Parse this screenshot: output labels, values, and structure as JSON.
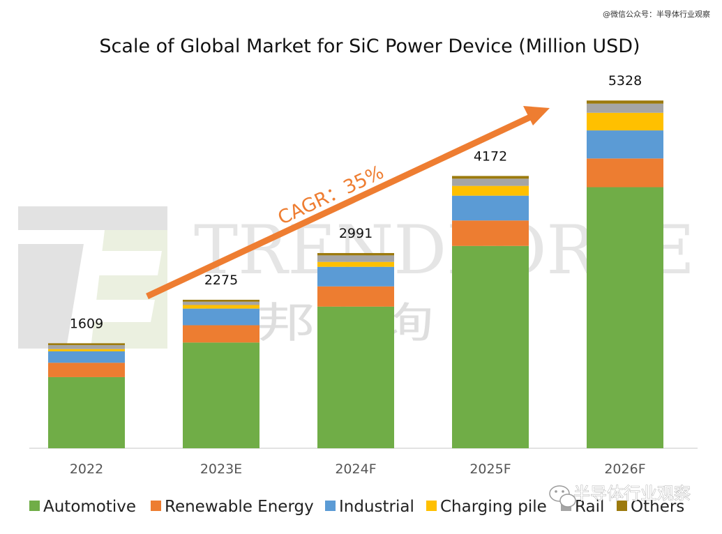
{
  "credit": "@微信公众号：半导体行业观察",
  "watermark": {
    "brand": "TRENDFORCE",
    "brand_cn": "集邦咨询",
    "account": "半导体行业观察"
  },
  "annotation": {
    "cagr": "CAGR：35%"
  },
  "colors": {
    "Automotive": "#70ad47",
    "Renewable Energy": "#ed7d31",
    "Industrial": "#5b9bd5",
    "Charging pile": "#ffc000",
    "Rail": "#a5a5a5",
    "Others": "#9c7a0d",
    "arrow": "#ee7d31",
    "axis": "#d9d9d9"
  },
  "chart_data": {
    "type": "bar",
    "stacked": true,
    "title": "Scale of Global Market for SiC Power Device (Million USD)",
    "xlabel": "",
    "ylabel": "",
    "categories": [
      "2022",
      "2023E",
      "2024F",
      "2025F",
      "2026F"
    ],
    "totals": [
      "1609",
      "2275",
      "2991",
      "4172",
      "5328"
    ],
    "ylim": [
      0,
      5800
    ],
    "legend_position": "bottom",
    "series": [
      {
        "name": "Automotive",
        "values": [
          1090,
          1620,
          2170,
          3100,
          4000
        ]
      },
      {
        "name": "Renewable Energy",
        "values": [
          220,
          265,
          310,
          390,
          440
        ]
      },
      {
        "name": "Industrial",
        "values": [
          175,
          255,
          300,
          380,
          430
        ]
      },
      {
        "name": "Charging pile",
        "values": [
          35,
          55,
          75,
          150,
          270
        ]
      },
      {
        "name": "Rail",
        "values": [
          60,
          50,
          100,
          110,
          140
        ]
      },
      {
        "name": "Others",
        "values": [
          29,
          30,
          36,
          42,
          48
        ]
      }
    ]
  }
}
